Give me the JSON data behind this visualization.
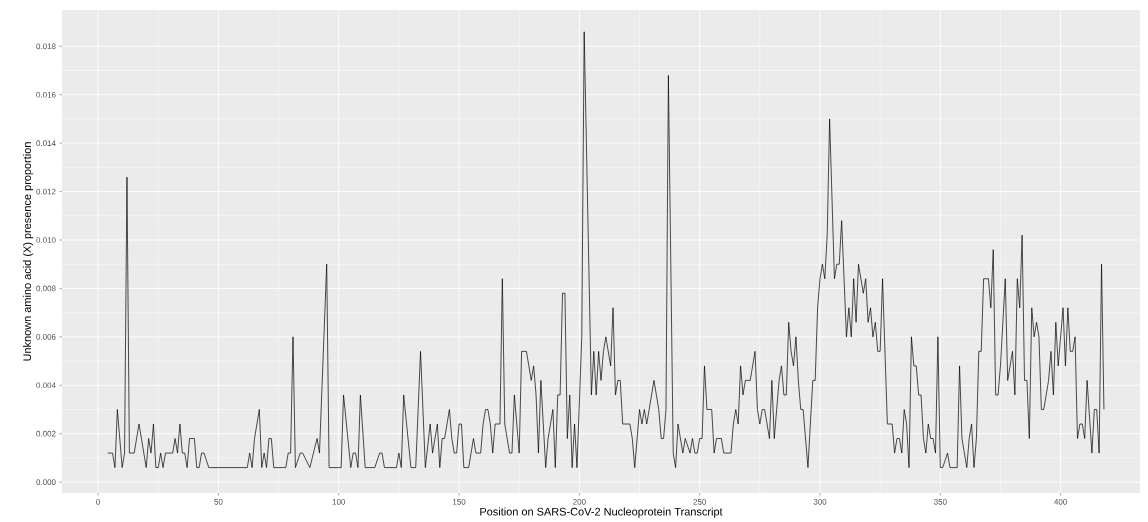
{
  "chart_data": {
    "type": "line",
    "xlabel": "Position on SARS-CoV-2 Nucleoprotein Transcript",
    "ylabel": "Unknown amino acid (X) presence proportion",
    "color": "#000000",
    "grid": true,
    "xlim": [
      -15,
      433
    ],
    "ylim": [
      -0.00045,
      0.0195
    ],
    "xticks": [
      0,
      50,
      100,
      150,
      200,
      250,
      300,
      350,
      400
    ],
    "yticks": [
      {
        "value": 0,
        "label": "0.000"
      },
      {
        "value": 0.002,
        "label": "0.002"
      },
      {
        "value": 0.004,
        "label": "0.004"
      },
      {
        "value": 0.006,
        "label": "0.006"
      },
      {
        "value": 0.008,
        "label": "0.008"
      },
      {
        "value": 0.01,
        "label": "0.010"
      },
      {
        "value": 0.012,
        "label": "0.012"
      },
      {
        "value": 0.014,
        "label": "0.014"
      },
      {
        "value": 0.016,
        "label": "0.016"
      },
      {
        "value": 0.018,
        "label": "0.018"
      }
    ],
    "x": [
      4,
      6,
      7,
      8,
      10,
      11,
      12,
      13,
      15,
      17,
      20,
      21,
      22,
      23,
      24,
      25,
      26,
      27,
      28,
      31,
      32,
      33,
      34,
      35,
      36,
      37,
      38,
      40,
      41,
      42,
      43,
      44,
      46,
      62,
      63,
      64,
      65,
      67,
      68,
      69,
      70,
      71,
      72,
      73,
      78,
      79,
      80,
      81,
      82,
      84,
      85,
      88,
      91,
      92,
      95,
      96,
      101,
      102,
      105,
      106,
      107,
      108,
      109,
      111,
      115,
      117,
      118,
      119,
      124,
      125,
      126,
      127,
      130,
      132,
      134,
      136,
      138,
      139,
      141,
      142,
      143,
      144,
      146,
      147,
      148,
      149,
      150,
      151,
      152,
      154,
      156,
      157,
      159,
      160,
      161,
      162,
      163,
      164,
      165,
      167,
      168,
      169,
      171,
      172,
      173,
      175,
      176,
      178,
      180,
      181,
      182,
      183,
      184,
      186,
      187,
      189,
      190,
      191,
      192,
      193,
      194,
      195,
      196,
      197,
      198,
      199,
      201,
      202,
      205,
      206,
      207,
      208,
      209,
      210,
      211,
      213,
      214,
      215,
      216,
      217,
      218,
      221,
      222,
      223,
      225,
      226,
      227,
      228,
      231,
      233,
      234,
      235,
      236,
      237,
      239,
      240,
      241,
      243,
      244,
      246,
      247,
      248,
      249,
      250,
      251,
      252,
      253,
      255,
      256,
      257,
      259,
      260,
      263,
      264,
      265,
      266,
      267,
      268,
      269,
      271,
      273,
      274,
      275,
      276,
      277,
      279,
      280,
      281,
      283,
      284,
      285,
      286,
      287,
      288,
      289,
      290,
      291,
      292,
      293,
      295,
      297,
      298,
      299,
      300,
      301,
      302,
      303,
      304,
      306,
      307,
      308,
      309,
      311,
      312,
      313,
      314,
      315,
      316,
      318,
      319,
      320,
      321,
      322,
      323,
      324,
      325,
      326,
      328,
      330,
      331,
      332,
      333,
      334,
      335,
      336,
      337,
      338,
      339,
      340,
      341,
      342,
      343,
      344,
      345,
      346,
      347,
      348,
      349,
      350,
      351,
      353,
      354,
      357,
      358,
      359,
      361,
      362,
      363,
      364,
      365,
      366,
      367,
      368,
      370,
      371,
      372,
      373,
      374,
      375,
      377,
      378,
      380,
      381,
      382,
      383,
      384,
      385,
      386,
      387,
      388,
      389,
      390,
      391,
      392,
      393,
      395,
      396,
      397,
      398,
      399,
      401,
      402,
      403,
      404,
      405,
      406,
      407,
      408,
      409,
      410,
      411,
      413,
      414,
      415,
      416,
      417,
      418
    ],
    "values": [
      0.0012,
      0.0012,
      0.0006,
      0.003,
      0.0006,
      0.0012,
      0.0126,
      0.0012,
      0.0012,
      0.0024,
      0.0006,
      0.0018,
      0.0012,
      0.0024,
      0.0006,
      0.0006,
      0.0012,
      0.0006,
      0.0012,
      0.0012,
      0.0018,
      0.0012,
      0.0024,
      0.0012,
      0.0012,
      0.0006,
      0.0018,
      0.0018,
      0.0006,
      0.0006,
      0.0012,
      0.0012,
      0.0006,
      0.0006,
      0.0012,
      0.0006,
      0.0018,
      0.003,
      0.0006,
      0.0012,
      0.0006,
      0.0018,
      0.0018,
      0.0006,
      0.0006,
      0.0012,
      0.0012,
      0.006,
      0.0006,
      0.0012,
      0.0012,
      0.0006,
      0.0018,
      0.0012,
      0.009,
      0.0006,
      0.0006,
      0.0036,
      0.0006,
      0.0012,
      0.0012,
      0.0006,
      0.0036,
      0.0006,
      0.0006,
      0.0012,
      0.0012,
      0.0006,
      0.0006,
      0.0012,
      0.0006,
      0.0036,
      0.0006,
      0.0006,
      0.0054,
      0.0006,
      0.0024,
      0.0012,
      0.0024,
      0.0006,
      0.0018,
      0.0018,
      0.003,
      0.0018,
      0.0012,
      0.0012,
      0.0024,
      0.0024,
      0.0006,
      0.0006,
      0.0018,
      0.0012,
      0.0012,
      0.0024,
      0.003,
      0.003,
      0.0024,
      0.0012,
      0.0024,
      0.0024,
      0.0084,
      0.0024,
      0.0012,
      0.0012,
      0.0036,
      0.0012,
      0.0054,
      0.0054,
      0.0042,
      0.0048,
      0.0036,
      0.0012,
      0.0042,
      0.0006,
      0.0018,
      0.003,
      0.0006,
      0.0036,
      0.0036,
      0.0078,
      0.0078,
      0.0018,
      0.0036,
      0.0006,
      0.0024,
      0.0006,
      0.006,
      0.0186,
      0.0036,
      0.0054,
      0.0036,
      0.0054,
      0.0042,
      0.0054,
      0.006,
      0.0048,
      0.0072,
      0.0036,
      0.0042,
      0.0042,
      0.0024,
      0.0024,
      0.0018,
      0.0006,
      0.003,
      0.0024,
      0.003,
      0.0024,
      0.0042,
      0.003,
      0.0018,
      0.0018,
      0.003,
      0.0168,
      0.0012,
      0.0006,
      0.0024,
      0.0012,
      0.0018,
      0.0012,
      0.0018,
      0.0012,
      0.0012,
      0.0018,
      0.0018,
      0.0048,
      0.003,
      0.003,
      0.0012,
      0.0018,
      0.0018,
      0.0012,
      0.0012,
      0.0024,
      0.003,
      0.0024,
      0.0048,
      0.0036,
      0.0042,
      0.0042,
      0.0054,
      0.003,
      0.0024,
      0.003,
      0.003,
      0.0018,
      0.0042,
      0.0018,
      0.0042,
      0.0048,
      0.0036,
      0.0036,
      0.0066,
      0.0054,
      0.0048,
      0.006,
      0.0042,
      0.003,
      0.003,
      0.0006,
      0.0042,
      0.0042,
      0.0072,
      0.0084,
      0.009,
      0.0084,
      0.0102,
      0.015,
      0.0084,
      0.009,
      0.009,
      0.0108,
      0.006,
      0.0072,
      0.006,
      0.0084,
      0.0066,
      0.009,
      0.0078,
      0.0084,
      0.0066,
      0.0072,
      0.006,
      0.0066,
      0.0054,
      0.0054,
      0.0084,
      0.0024,
      0.0024,
      0.0012,
      0.0018,
      0.0018,
      0.0012,
      0.003,
      0.0024,
      0.0006,
      0.006,
      0.0048,
      0.0048,
      0.0036,
      0.0036,
      0.0018,
      0.0012,
      0.0024,
      0.0018,
      0.0018,
      0.0012,
      0.006,
      0.0006,
      0.0006,
      0.0012,
      0.0006,
      0.0006,
      0.0048,
      0.0018,
      0.0006,
      0.0018,
      0.0024,
      0.0006,
      0.0018,
      0.0054,
      0.0054,
      0.0084,
      0.0084,
      0.0072,
      0.0096,
      0.0036,
      0.0036,
      0.0048,
      0.0084,
      0.0042,
      0.0054,
      0.0036,
      0.0084,
      0.0072,
      0.0102,
      0.0042,
      0.0042,
      0.0018,
      0.0072,
      0.006,
      0.0066,
      0.006,
      0.003,
      0.003,
      0.0042,
      0.0054,
      0.0036,
      0.0066,
      0.0048,
      0.0072,
      0.0048,
      0.0072,
      0.0054,
      0.0054,
      0.006,
      0.0018,
      0.0024,
      0.0024,
      0.0018,
      0.0042,
      0.0012,
      0.003,
      0.003,
      0.0012,
      0.009,
      0.003
    ]
  }
}
